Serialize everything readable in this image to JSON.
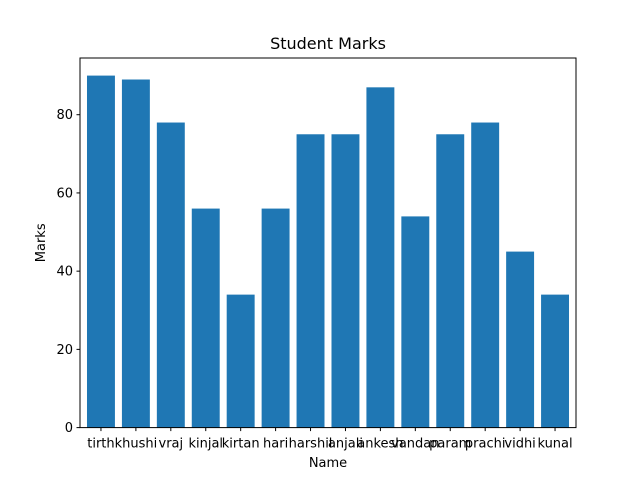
{
  "chart_data": {
    "type": "bar",
    "title": "Student Marks",
    "xlabel": "Name",
    "ylabel": "Marks",
    "categories": [
      "tirth",
      "khushi",
      "vraj",
      "kinjal",
      "kirtan",
      "hari",
      "harshil",
      "anjali",
      "ankesh",
      "vandan",
      "param",
      "prachi",
      "vidhi",
      "kunal"
    ],
    "values": [
      90,
      89,
      78,
      56,
      34,
      56,
      75,
      75,
      87,
      54,
      75,
      78,
      45,
      34
    ],
    "ylim": [
      0,
      94.5
    ],
    "yticks": [
      0,
      20,
      40,
      60,
      80
    ],
    "bar_color": "#1f77b4",
    "grid": false
  }
}
